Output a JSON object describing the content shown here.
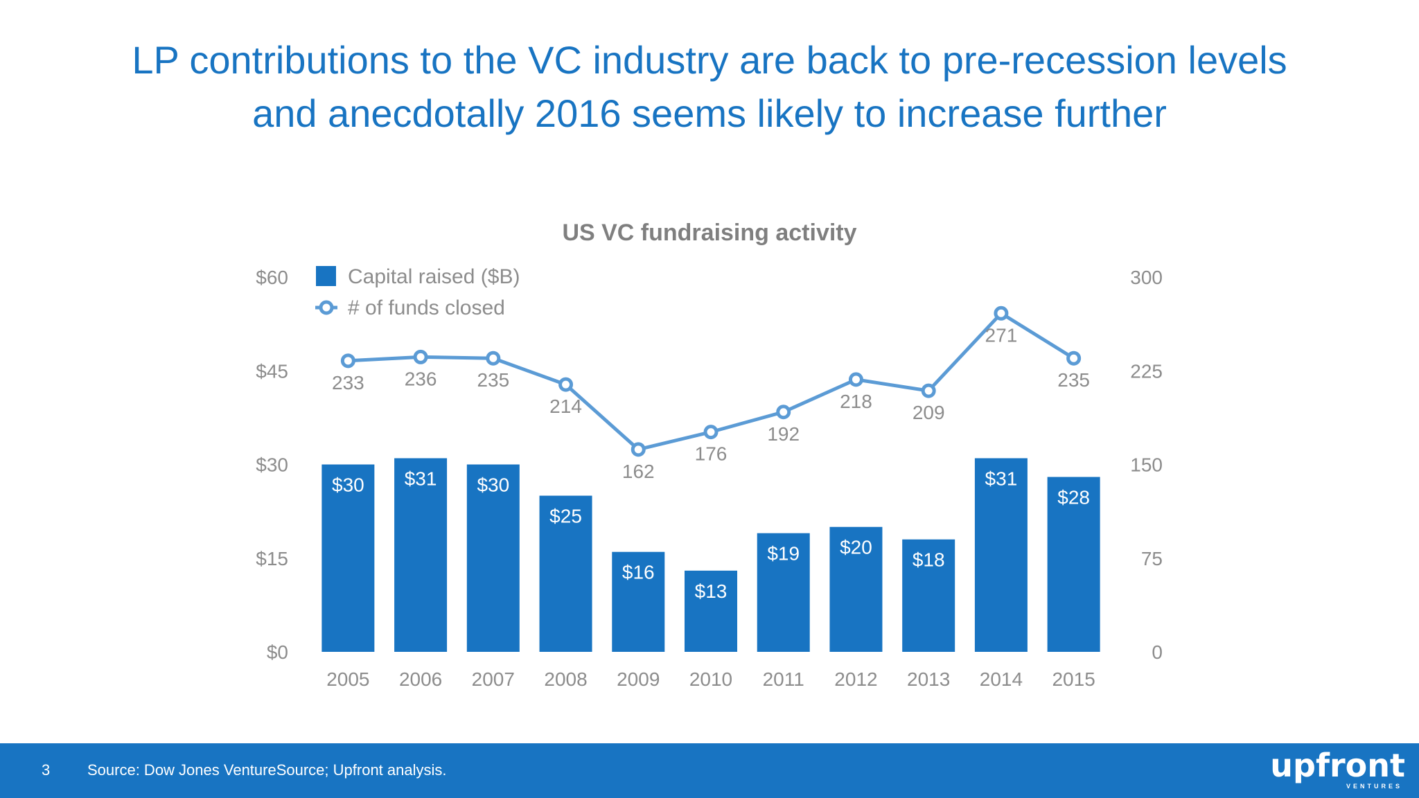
{
  "slide": {
    "title_line1": "LP contributions to the VC industry are back to pre-recession levels",
    "title_line2": "and anecdotally 2016 seems likely to increase further",
    "page_number": "3",
    "source": "Source: Dow Jones VentureSource; Upfront analysis.",
    "logo_text": "upfront",
    "logo_subtext": "VENTURES",
    "accent_color": "#1874c2"
  },
  "chart_data": {
    "type": "bar",
    "title": "US VC fundraising activity",
    "categories": [
      "2005",
      "2006",
      "2007",
      "2008",
      "2009",
      "2010",
      "2011",
      "2012",
      "2013",
      "2014",
      "2015"
    ],
    "series": [
      {
        "name": "Capital raised ($B)",
        "type": "bar",
        "axis": "left",
        "color": "#1874c2",
        "values": [
          30,
          31,
          30,
          25,
          16,
          13,
          19,
          20,
          18,
          31,
          28
        ],
        "labels": [
          "$30",
          "$31",
          "$30",
          "$25",
          "$16",
          "$13",
          "$19",
          "$20",
          "$18",
          "$31",
          "$28"
        ]
      },
      {
        "name": "# of funds closed",
        "type": "line",
        "axis": "right",
        "color": "#5b9bd5",
        "values": [
          233,
          236,
          235,
          214,
          162,
          176,
          192,
          218,
          209,
          271,
          235
        ],
        "labels": [
          "233",
          "236",
          "235",
          "214",
          "162",
          "176",
          "192",
          "218",
          "209",
          "271",
          "235"
        ]
      }
    ],
    "y_left": {
      "ylim": [
        0,
        60
      ],
      "ticks": [
        0,
        15,
        30,
        45,
        60
      ],
      "tick_labels": [
        "$0",
        "$15",
        "$30",
        "$45",
        "$60"
      ]
    },
    "y_right": {
      "ylim": [
        0,
        300
      ],
      "ticks": [
        0,
        75,
        150,
        225,
        300
      ],
      "tick_labels": [
        "0",
        "75",
        "150",
        "225",
        "300"
      ]
    },
    "legend_placement": "top-left",
    "grid": false
  }
}
